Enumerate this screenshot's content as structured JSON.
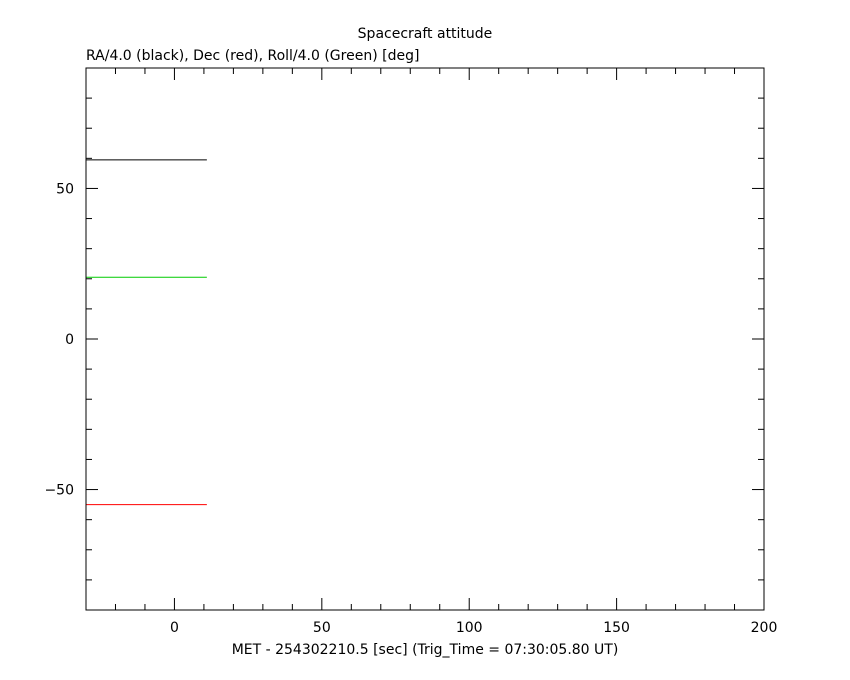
{
  "chart_data": {
    "type": "line",
    "title": "Spacecraft attitude",
    "subtitle": "RA/4.0 (black), Dec (red), Roll/4.0 (Green) [deg]",
    "xlabel": "MET - 254302210.5 [sec] (Trig_Time = 07:30:05.80 UT)",
    "ylabel": "",
    "xlim": [
      -30,
      200
    ],
    "ylim": [
      -90,
      90
    ],
    "x_major_ticks": [
      0,
      50,
      100,
      150,
      200
    ],
    "x_minor_step": 10,
    "y_major_ticks": [
      -50,
      0,
      50
    ],
    "y_minor_step": 10,
    "x_tick_labels": [
      "0",
      "50",
      "100",
      "150",
      "200"
    ],
    "y_tick_labels": [
      "−50",
      "0",
      "50"
    ],
    "grid": false,
    "series": [
      {
        "color": "#000000",
        "x": [
          -30,
          11
        ],
        "y": [
          59.5,
          59.5
        ]
      },
      {
        "color": "#00cc00",
        "x": [
          -30,
          11
        ],
        "y": [
          20.5,
          20.5
        ]
      },
      {
        "color": "#ff0000",
        "x": [
          -30,
          11
        ],
        "y": [
          -55,
          -55
        ]
      }
    ]
  }
}
